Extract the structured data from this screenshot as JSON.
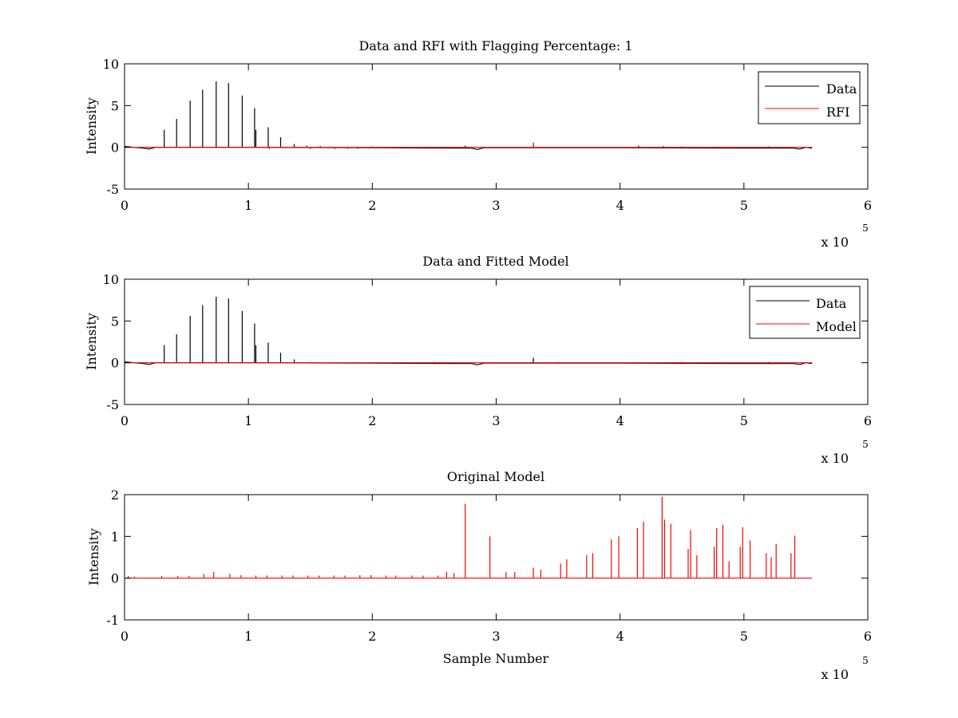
{
  "colors": {
    "data": "#000000",
    "rfi": "#ff0000",
    "model": "#ff0000",
    "axes": "#000000",
    "background": "#ffffff"
  },
  "chart_data": [
    {
      "type": "line",
      "title": "Data and RFI with Flagging Percentage: 1",
      "xlabel": "",
      "ylabel": "Intensity",
      "xlim": [
        0,
        600000
      ],
      "ylim": [
        -5,
        10
      ],
      "x_ticks": [
        "0",
        "1",
        "2",
        "3",
        "4",
        "5",
        "6"
      ],
      "y_ticks": [
        "-5",
        "0",
        "5",
        "10"
      ],
      "x_exponent_label": "x 10",
      "x_exponent_power": "5",
      "legend_position": "top-right",
      "grid": false,
      "series": [
        {
          "name": "Data",
          "color": "#000000",
          "baseline": [
            [
              0,
              0.1
            ],
            [
              8000,
              0.0
            ],
            [
              15000,
              -0.1
            ],
            [
              20000,
              -0.2
            ],
            [
              25000,
              0.0
            ],
            [
              100000,
              0.0
            ],
            [
              200000,
              -0.05
            ],
            [
              280000,
              -0.1
            ],
            [
              285000,
              -0.25
            ],
            [
              290000,
              -0.05
            ],
            [
              400000,
              -0.05
            ],
            [
              500000,
              -0.1
            ],
            [
              540000,
              -0.1
            ],
            [
              545000,
              -0.2
            ],
            [
              550000,
              0.0
            ],
            [
              555000,
              -0.1
            ]
          ],
          "spikes": [
            [
              32000,
              2.1
            ],
            [
              42000,
              3.4
            ],
            [
              53000,
              5.6
            ],
            [
              63000,
              6.9
            ],
            [
              74000,
              7.9
            ],
            [
              84000,
              7.7
            ],
            [
              95000,
              6.2
            ],
            [
              105000,
              4.7
            ],
            [
              106000,
              2.1
            ],
            [
              116000,
              2.4
            ],
            [
              126000,
              1.2
            ],
            [
              137000,
              0.4
            ],
            [
              147000,
              0.2
            ],
            [
              158000,
              0.15
            ],
            [
              200000,
              0.1
            ],
            [
              275000,
              0.2
            ],
            [
              330000,
              0.4
            ],
            [
              415000,
              0.2
            ],
            [
              435000,
              0.15
            ],
            [
              450000,
              0.1
            ],
            [
              520000,
              0.1
            ]
          ]
        },
        {
          "name": "RFI",
          "color": "#ff0000",
          "baseline": [
            [
              0,
              0.0
            ],
            [
              555000,
              0.0
            ]
          ],
          "spikes": [
            [
              117000,
              -0.2
            ],
            [
              150000,
              -0.2
            ],
            [
              170000,
              -0.2
            ],
            [
              180000,
              -0.2
            ],
            [
              188000,
              -0.2
            ],
            [
              330000,
              0.6
            ]
          ]
        }
      ]
    },
    {
      "type": "line",
      "title": "Data and Fitted Model",
      "xlabel": "",
      "ylabel": "Intensity",
      "xlim": [
        0,
        600000
      ],
      "ylim": [
        -5,
        10
      ],
      "x_ticks": [
        "0",
        "1",
        "2",
        "3",
        "4",
        "5",
        "6"
      ],
      "y_ticks": [
        "-5",
        "0",
        "5",
        "10"
      ],
      "x_exponent_label": "x 10",
      "x_exponent_power": "5",
      "legend_position": "top-right",
      "grid": false,
      "series": [
        {
          "name": "Data",
          "color": "#000000",
          "baseline": [
            [
              0,
              0.1
            ],
            [
              8000,
              0.0
            ],
            [
              15000,
              -0.1
            ],
            [
              20000,
              -0.2
            ],
            [
              25000,
              0.0
            ],
            [
              100000,
              0.0
            ],
            [
              200000,
              -0.05
            ],
            [
              280000,
              -0.1
            ],
            [
              285000,
              -0.25
            ],
            [
              290000,
              -0.05
            ],
            [
              400000,
              -0.05
            ],
            [
              500000,
              -0.1
            ],
            [
              540000,
              -0.1
            ],
            [
              545000,
              -0.2
            ],
            [
              550000,
              0.0
            ],
            [
              555000,
              -0.1
            ]
          ],
          "spikes": [
            [
              32000,
              2.1
            ],
            [
              42000,
              3.4
            ],
            [
              53000,
              5.6
            ],
            [
              63000,
              6.9
            ],
            [
              74000,
              7.9
            ],
            [
              84000,
              7.7
            ],
            [
              95000,
              6.2
            ],
            [
              105000,
              4.7
            ],
            [
              106000,
              2.1
            ],
            [
              116000,
              2.4
            ],
            [
              126000,
              1.2
            ],
            [
              137000,
              0.4
            ],
            [
              330000,
              0.6
            ]
          ]
        },
        {
          "name": "Model",
          "color": "#ff0000",
          "baseline": [
            [
              0,
              0.0
            ],
            [
              555000,
              0.0
            ]
          ],
          "spikes": [
            [
              60000,
              0.1
            ],
            [
              150000,
              0.1
            ],
            [
              250000,
              0.1
            ],
            [
              350000,
              0.1
            ],
            [
              450000,
              0.1
            ],
            [
              520000,
              0.1
            ]
          ]
        }
      ]
    },
    {
      "type": "line",
      "title": "Original Model",
      "xlabel": "Sample Number",
      "ylabel": "Intensity",
      "xlim": [
        0,
        600000
      ],
      "ylim": [
        -1,
        2
      ],
      "x_ticks": [
        "0",
        "1",
        "2",
        "3",
        "4",
        "5",
        "6"
      ],
      "y_ticks": [
        "-1",
        "0",
        "1",
        "2"
      ],
      "x_exponent_label": "x 10",
      "x_exponent_power": "5",
      "grid": false,
      "series": [
        {
          "color": "#ff0000",
          "baseline": [
            [
              0,
              0.0
            ],
            [
              555000,
              0.0
            ]
          ],
          "spikes": [
            [
              3000,
              0.05
            ],
            [
              8000,
              0.04
            ],
            [
              30000,
              0.05
            ],
            [
              43000,
              0.05
            ],
            [
              52000,
              0.05
            ],
            [
              64000,
              0.1
            ],
            [
              72000,
              0.15
            ],
            [
              85000,
              0.1
            ],
            [
              94000,
              0.07
            ],
            [
              106000,
              0.06
            ],
            [
              115000,
              0.06
            ],
            [
              127000,
              0.06
            ],
            [
              136000,
              0.06
            ],
            [
              148000,
              0.06
            ],
            [
              157000,
              0.06
            ],
            [
              169000,
              0.06
            ],
            [
              178000,
              0.06
            ],
            [
              190000,
              0.07
            ],
            [
              199000,
              0.07
            ],
            [
              211000,
              0.06
            ],
            [
              219000,
              0.06
            ],
            [
              232000,
              0.06
            ],
            [
              241000,
              0.06
            ],
            [
              253000,
              0.06
            ],
            [
              260000,
              0.15
            ],
            [
              266000,
              0.12
            ],
            [
              275000,
              1.78
            ],
            [
              295000,
              1.0
            ],
            [
              308000,
              0.15
            ],
            [
              315000,
              0.15
            ],
            [
              330000,
              0.25
            ],
            [
              336000,
              0.2
            ],
            [
              352000,
              0.35
            ],
            [
              357000,
              0.45
            ],
            [
              373000,
              0.55
            ],
            [
              378000,
              0.6
            ],
            [
              393000,
              0.92
            ],
            [
              399000,
              1.0
            ],
            [
              414000,
              1.2
            ],
            [
              419000,
              1.35
            ],
            [
              434000,
              1.95
            ],
            [
              436000,
              1.4
            ],
            [
              441000,
              1.3
            ],
            [
              455000,
              0.7
            ],
            [
              457000,
              1.15
            ],
            [
              462000,
              0.55
            ],
            [
              476000,
              0.75
            ],
            [
              478000,
              1.2
            ],
            [
              483000,
              1.28
            ],
            [
              488000,
              0.4
            ],
            [
              497000,
              0.75
            ],
            [
              499000,
              1.22
            ],
            [
              505000,
              0.9
            ],
            [
              518000,
              0.6
            ],
            [
              522000,
              0.5
            ],
            [
              526000,
              0.82
            ],
            [
              538000,
              0.6
            ],
            [
              541000,
              1.02
            ]
          ]
        }
      ]
    }
  ]
}
